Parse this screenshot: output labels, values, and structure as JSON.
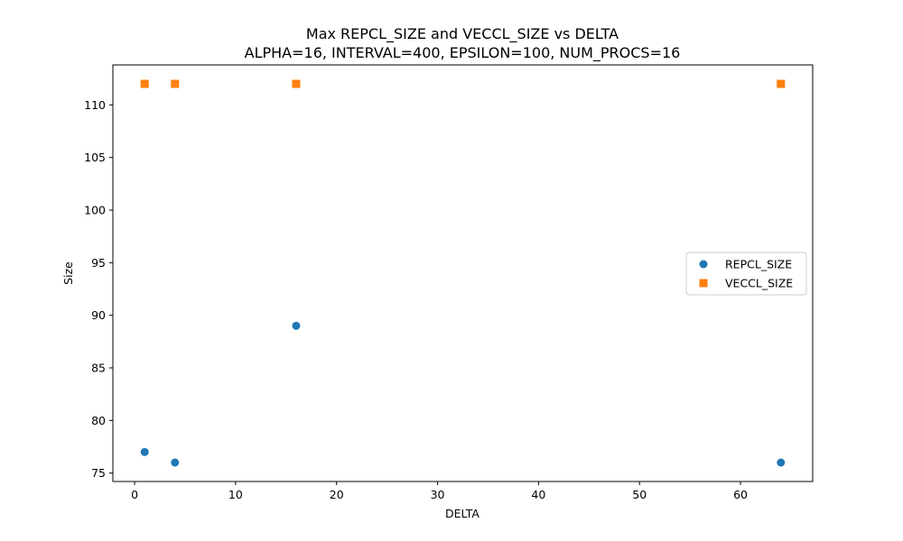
{
  "chart_data": {
    "type": "scatter",
    "title": "Max REPCL_SIZE and VECCL_SIZE vs DELTA",
    "subtitle": "ALPHA=16, INTERVAL=400, EPSILON=100, NUM_PROCS=16",
    "xlabel": "DELTA",
    "ylabel": "Size",
    "xlim": [
      -2.15,
      67.15
    ],
    "ylim": [
      74.2,
      113.8
    ],
    "xticks": [
      0,
      10,
      20,
      30,
      40,
      50,
      60
    ],
    "yticks": [
      75,
      80,
      85,
      90,
      95,
      100,
      105,
      110
    ],
    "grid": false,
    "legend_position": "center-right",
    "series": [
      {
        "name": "REPCL_SIZE",
        "marker": "circle",
        "color": "#1f77b4",
        "x": [
          1,
          4,
          16,
          64
        ],
        "y": [
          77,
          76,
          89,
          76
        ]
      },
      {
        "name": "VECCL_SIZE",
        "marker": "square",
        "color": "#ff7f0e",
        "x": [
          1,
          4,
          16,
          64
        ],
        "y": [
          112,
          112,
          112,
          112
        ]
      }
    ]
  }
}
